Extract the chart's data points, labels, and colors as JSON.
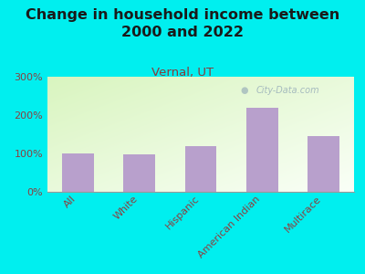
{
  "title": "Change in household income between\n2000 and 2022",
  "subtitle": "Vernal, UT",
  "categories": [
    "All",
    "White",
    "Hispanic",
    "American Indian",
    "Multirace"
  ],
  "values": [
    100,
    97,
    120,
    220,
    145
  ],
  "bar_color": "#b8a0cc",
  "background_color": "#00efef",
  "plot_bg_color": "#e8f5d8",
  "ylim": [
    0,
    300
  ],
  "yticks": [
    0,
    100,
    200,
    300
  ],
  "ytick_labels": [
    "0%",
    "100%",
    "200%",
    "300%"
  ],
  "title_fontsize": 11.5,
  "subtitle_fontsize": 9.5,
  "subtitle_color": "#8b3a3a",
  "axis_label_color": "#8b4040",
  "watermark": "City-Data.com",
  "watermark_color": "#9ab0ba",
  "tick_label_fontsize": 8
}
